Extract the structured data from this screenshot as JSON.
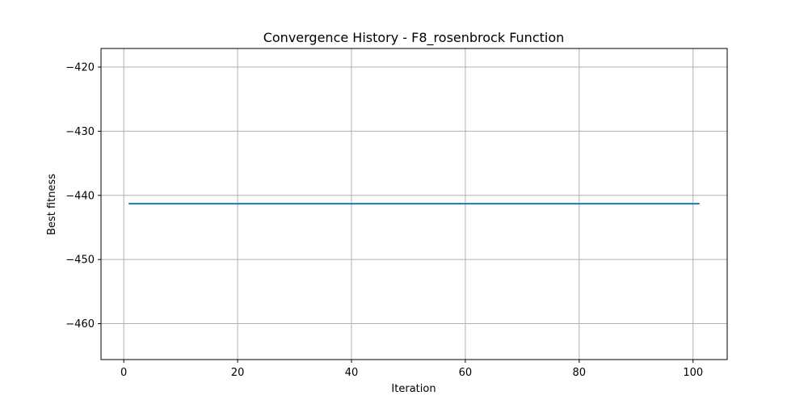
{
  "chart_data": {
    "type": "line",
    "title": "Convergence History - F8_rosenbrock Function",
    "xlabel": "Iteration",
    "ylabel": "Best fitness",
    "xlim": [
      -4,
      106
    ],
    "ylim": [
      -465.6,
      -417.1
    ],
    "xticks": [
      0,
      20,
      40,
      60,
      80,
      100
    ],
    "yticks": [
      -420,
      -430,
      -440,
      -450,
      -460
    ],
    "xtick_labels": [
      "0",
      "20",
      "40",
      "60",
      "80",
      "100"
    ],
    "ytick_labels": [
      "−420",
      "−430",
      "−440",
      "−450",
      "−460"
    ],
    "grid": true,
    "series": [
      {
        "color": "#1f77b4",
        "x": [
          1,
          101
        ],
        "y": [
          -441.3,
          -441.3
        ]
      }
    ]
  }
}
